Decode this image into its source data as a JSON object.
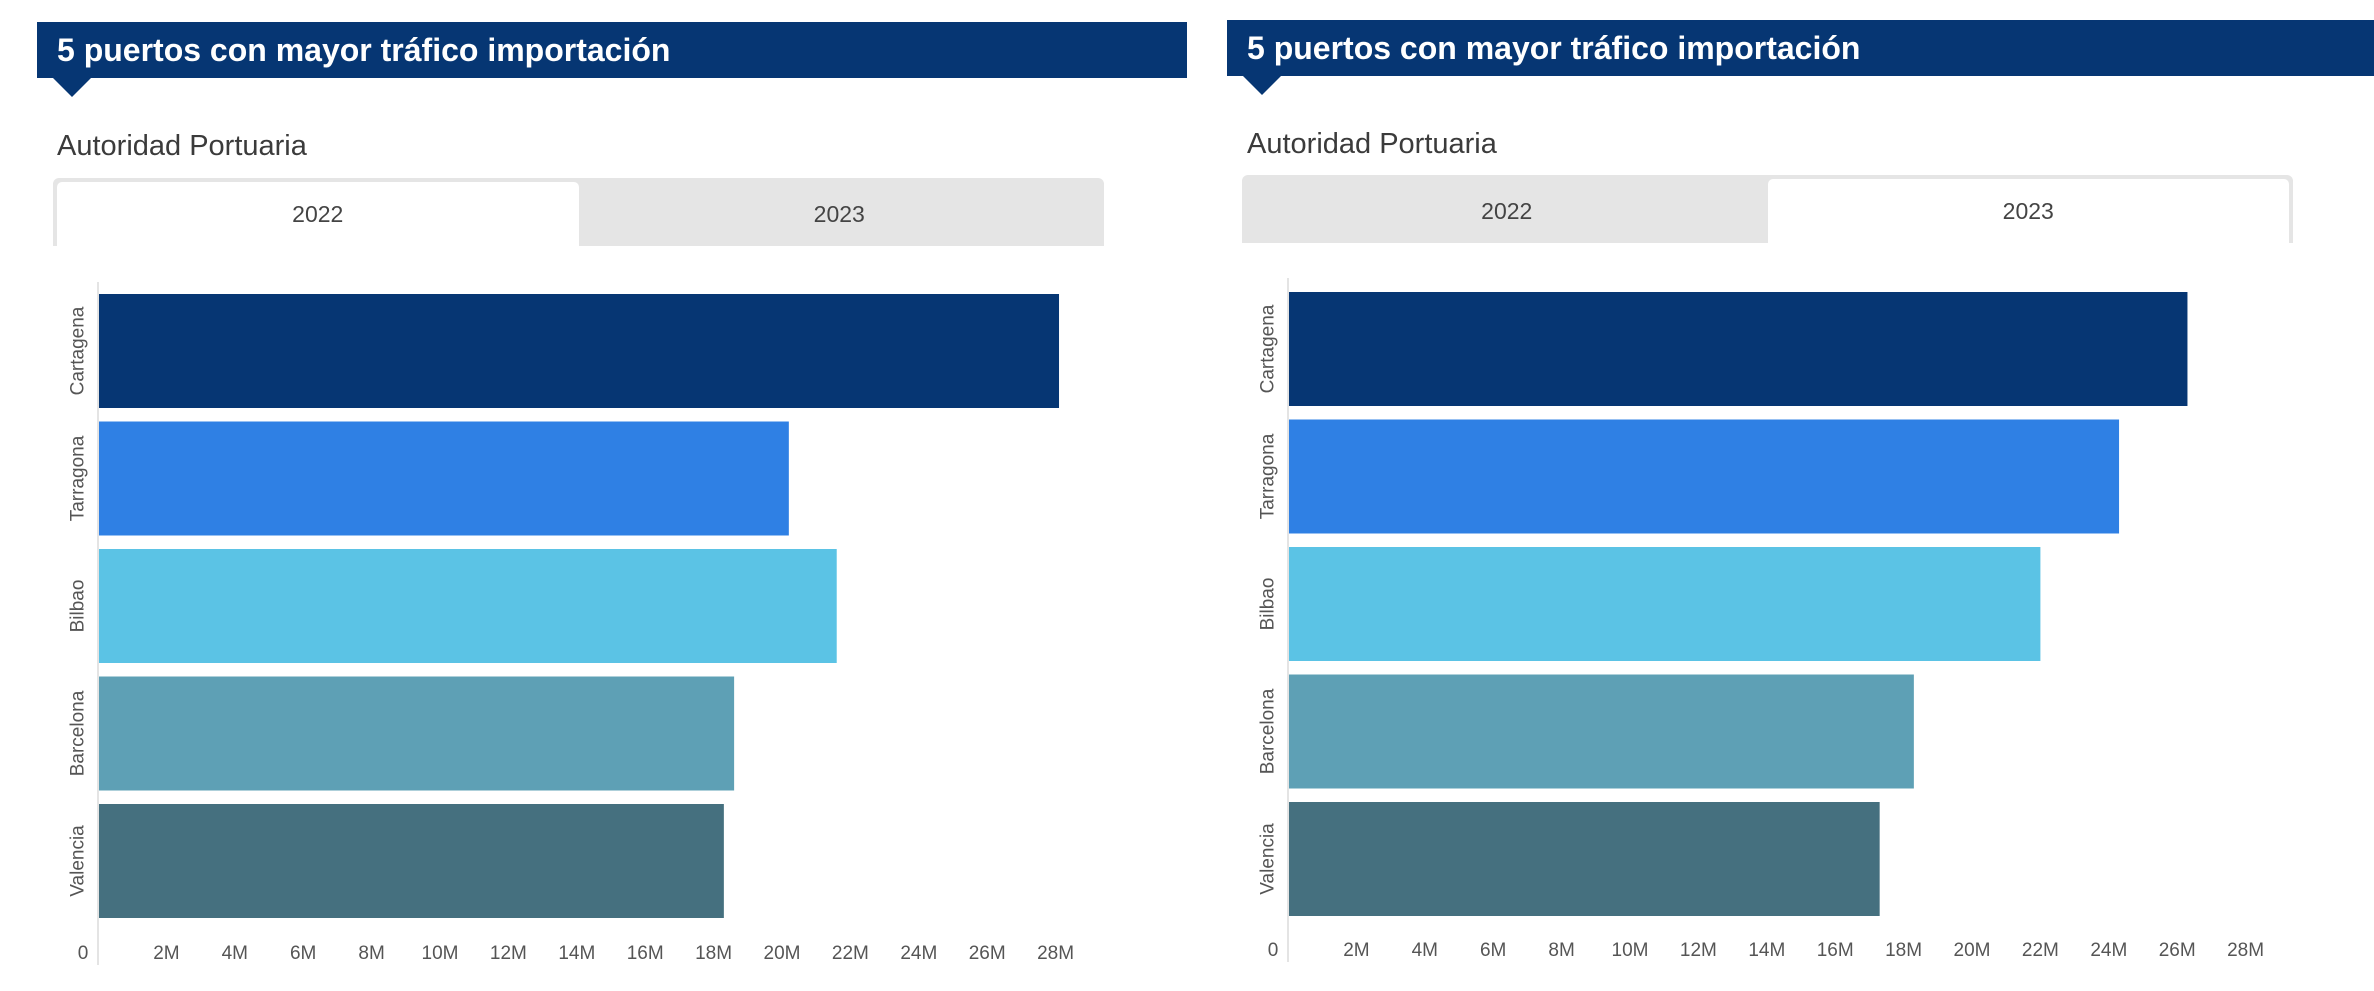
{
  "panels": [
    {
      "header_title": "5 puertos con mayor tráfico importación",
      "subtitle": "Autoridad Portuaria",
      "tabs": [
        {
          "label": "2022",
          "active": true
        },
        {
          "label": "2023",
          "active": false
        }
      ]
    },
    {
      "header_title": "5 puertos con mayor tráfico importación",
      "subtitle": "Autoridad Portuaria",
      "tabs": [
        {
          "label": "2022",
          "active": false
        },
        {
          "label": "2023",
          "active": true
        }
      ]
    }
  ],
  "colors": {
    "header": "#063673",
    "Cartagena": "#063673",
    "Tarragona": "#2f80e4",
    "Bilbao": "#5bc3e5",
    "Barcelona": "#5ea0b5",
    "Valencia": "#45707f"
  },
  "chart_data": [
    {
      "type": "bar",
      "orientation": "horizontal",
      "title": "5 puertos con mayor tráfico importación",
      "subtitle": "Autoridad Portuaria",
      "selected_year": "2022",
      "categories": [
        "Cartagena",
        "Tarragona",
        "Bilbao",
        "Barcelona",
        "Valencia"
      ],
      "values": [
        28.1,
        20.2,
        21.6,
        18.6,
        18.3
      ],
      "units": "M",
      "xlabel": "",
      "ylabel": "",
      "xlim": [
        0,
        28
      ],
      "xticks": [
        "0",
        "2M",
        "4M",
        "6M",
        "8M",
        "10M",
        "12M",
        "14M",
        "16M",
        "18M",
        "20M",
        "22M",
        "24M",
        "26M",
        "28M"
      ],
      "grid": false,
      "legend": "none"
    },
    {
      "type": "bar",
      "orientation": "horizontal",
      "title": "5 puertos con mayor tráfico importación",
      "subtitle": "Autoridad Portuaria",
      "selected_year": "2023",
      "categories": [
        "Cartagena",
        "Tarragona",
        "Bilbao",
        "Barcelona",
        "Valencia"
      ],
      "values": [
        26.3,
        24.3,
        22.0,
        18.3,
        17.3
      ],
      "units": "M",
      "xlabel": "",
      "ylabel": "",
      "xlim": [
        0,
        28
      ],
      "xticks": [
        "0",
        "2M",
        "4M",
        "6M",
        "8M",
        "10M",
        "12M",
        "14M",
        "16M",
        "18M",
        "20M",
        "22M",
        "24M",
        "26M",
        "28M"
      ],
      "grid": false,
      "legend": "none"
    }
  ]
}
